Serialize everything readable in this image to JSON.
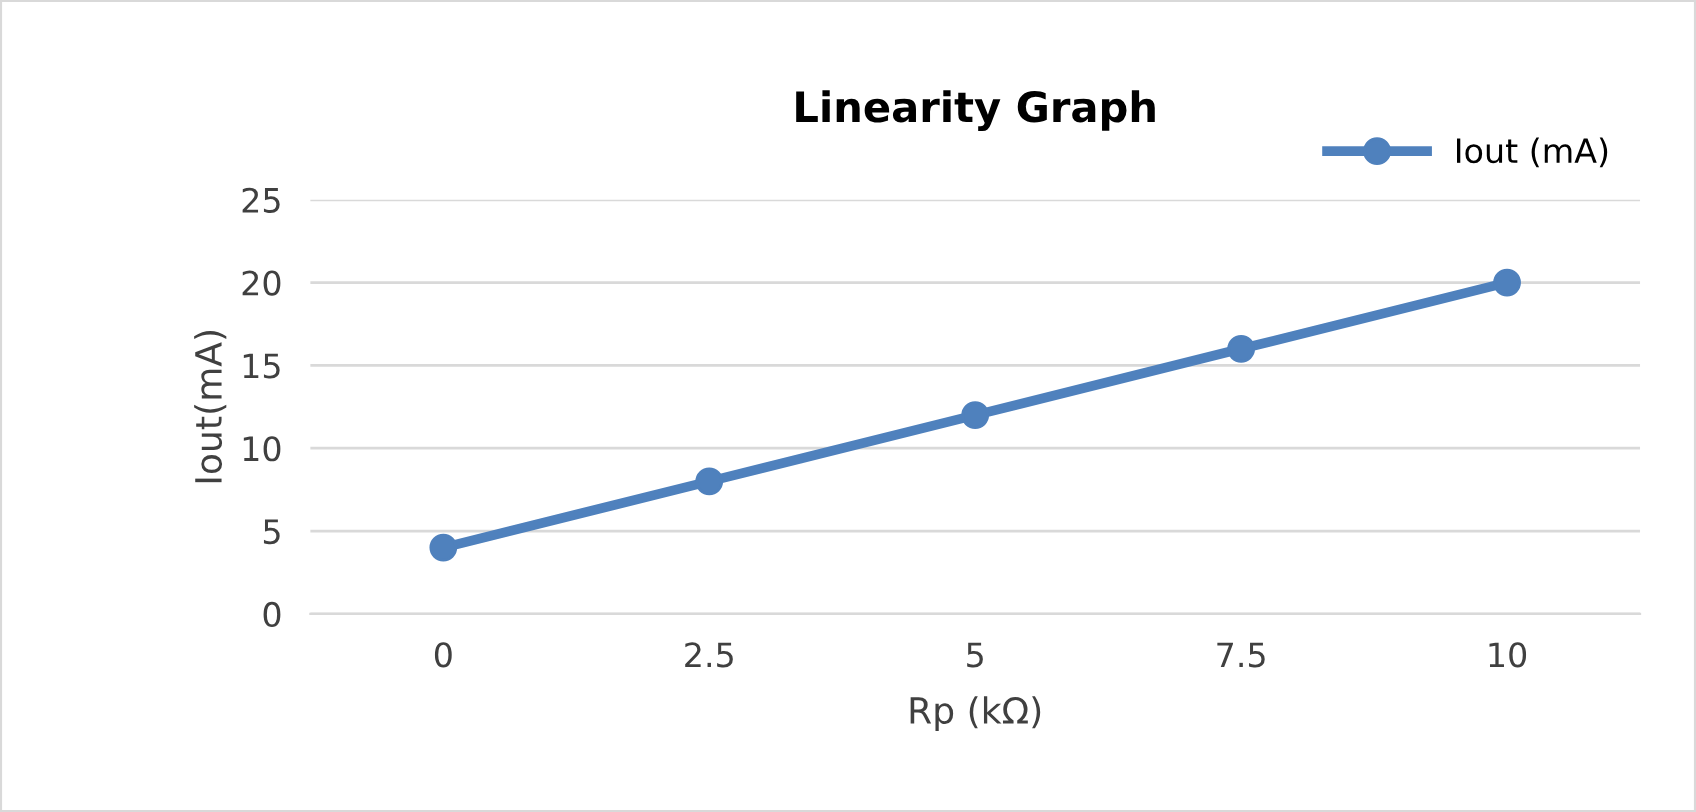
{
  "chart_data": {
    "type": "line",
    "title": "Linearity Graph",
    "xlabel": "Rp (kΩ)",
    "ylabel": "Iout(mA)",
    "categories": [
      "0",
      "2.5",
      "5",
      "7.5",
      "10"
    ],
    "series": [
      {
        "name": "Iout (mA)",
        "color": "#4f81bd",
        "values": [
          4,
          8,
          12,
          16,
          20
        ]
      }
    ],
    "ylim": [
      0,
      25
    ],
    "yticks": [
      0,
      5,
      10,
      15,
      20,
      25
    ],
    "grid": "y",
    "legend": "top right",
    "marker": "circle",
    "line_style": "solid"
  }
}
